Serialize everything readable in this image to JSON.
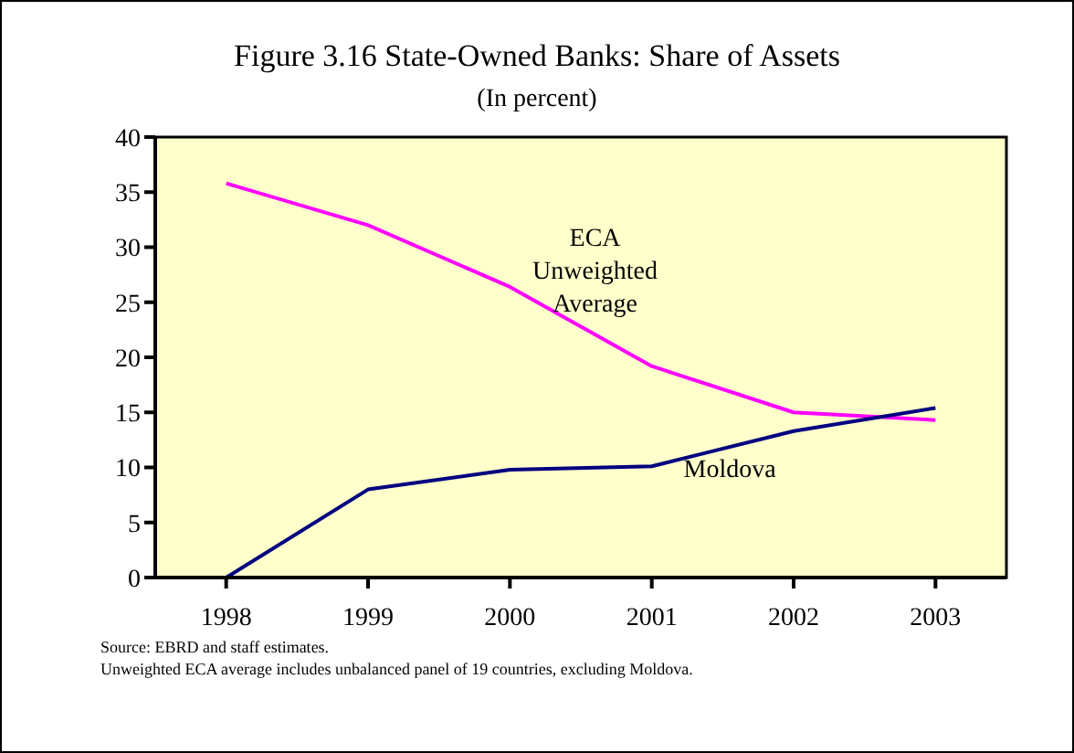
{
  "chart_data": {
    "type": "line",
    "title": "Figure 3.16 State-Owned Banks: Share of Assets",
    "subtitle": "(In percent)",
    "categories": [
      "1998",
      "1999",
      "2000",
      "2001",
      "2002",
      "2003"
    ],
    "series": [
      {
        "name": "ECA Unweighted Average",
        "color": "#ff00ff",
        "values": [
          35.8,
          32,
          26.4,
          19.2,
          15,
          14.3
        ]
      },
      {
        "name": "Moldova",
        "color": "#000080",
        "values": [
          0,
          8,
          9.8,
          10.1,
          13.3,
          15.4
        ]
      }
    ],
    "ylim": [
      0,
      40
    ],
    "yticks": [
      0,
      5,
      10,
      15,
      20,
      25,
      30,
      35,
      40
    ],
    "grid": false,
    "legend": false,
    "marker": "none",
    "line_style": "solid",
    "annotations": [
      "Source: EBRD and staff estimates.",
      "Unweighted ECA average includes unbalanced panel of 19 countries, excluding Moldova."
    ]
  }
}
